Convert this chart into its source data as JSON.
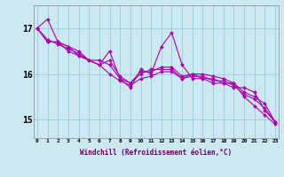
{
  "xlabel": "Windchill (Refroidissement éolien,°C)",
  "ylabel": "",
  "background_color": "#cce8f0",
  "line_color": "#aa00aa",
  "grid_color": "#99ccdd",
  "x_tick_labels": [
    "0",
    "1",
    "2",
    "3",
    "4",
    "5",
    "6",
    "7",
    "8",
    "9",
    "10",
    "11",
    "12",
    "13",
    "14",
    "15",
    "16",
    "17",
    "18",
    "19",
    "20",
    "21",
    "22",
    "23"
  ],
  "y_ticks": [
    15,
    16,
    17
  ],
  "ylim": [
    14.6,
    17.5
  ],
  "xlim": [
    -0.3,
    23.3
  ],
  "series": [
    [
      17.0,
      17.2,
      16.7,
      16.6,
      16.5,
      16.3,
      16.2,
      16.5,
      15.9,
      15.7,
      16.1,
      16.0,
      16.6,
      16.9,
      16.2,
      15.9,
      15.9,
      15.8,
      15.8,
      15.8,
      15.5,
      15.3,
      15.1,
      14.9
    ],
    [
      17.0,
      16.7,
      16.7,
      16.5,
      16.4,
      16.3,
      16.3,
      16.2,
      15.9,
      15.8,
      16.0,
      16.1,
      16.1,
      16.1,
      15.9,
      16.0,
      15.9,
      15.9,
      15.8,
      15.7,
      15.7,
      15.6,
      15.2,
      14.95
    ],
    [
      17.0,
      16.7,
      16.7,
      16.6,
      16.4,
      16.3,
      16.2,
      16.3,
      15.95,
      15.8,
      16.05,
      16.05,
      16.15,
      16.15,
      15.95,
      16.0,
      16.0,
      15.95,
      15.9,
      15.8,
      15.6,
      15.5,
      15.35,
      14.95
    ],
    [
      17.0,
      16.75,
      16.65,
      16.55,
      16.45,
      16.3,
      16.2,
      16.0,
      15.85,
      15.75,
      15.9,
      15.95,
      16.05,
      16.05,
      15.9,
      15.95,
      15.95,
      15.85,
      15.85,
      15.75,
      15.55,
      15.45,
      15.25,
      14.95
    ]
  ]
}
